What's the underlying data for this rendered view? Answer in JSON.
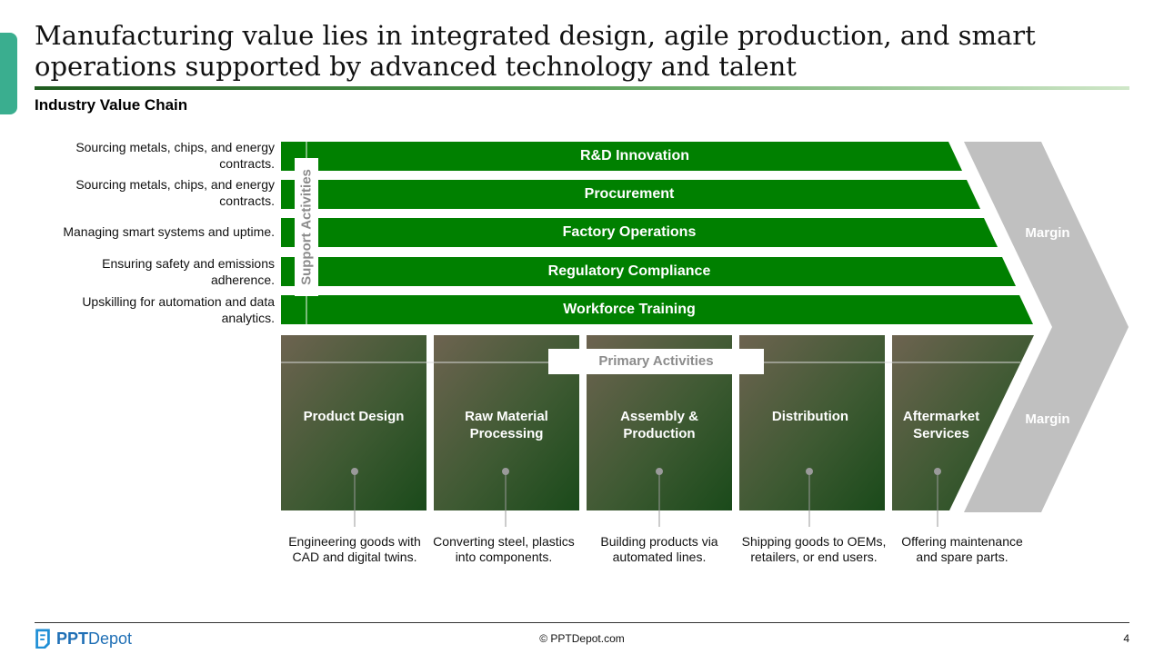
{
  "title": "Manufacturing value lies in integrated design, agile production, and smart operations supported by advanced technology and talent",
  "subtitle": "Industry Value Chain",
  "support_label": "Support Activities",
  "primary_label": "Primary Activities",
  "margin_labels": [
    "Margin",
    "Margin"
  ],
  "support_activities": [
    {
      "label": "R&D Innovation",
      "description": "Sourcing metals, chips, and energy contracts."
    },
    {
      "label": "Procurement",
      "description": "Sourcing metals, chips, and energy contracts."
    },
    {
      "label": "Factory Operations",
      "description": "Managing smart systems and uptime."
    },
    {
      "label": "Regulatory Compliance",
      "description": "Ensuring safety and emissions adherence."
    },
    {
      "label": "Workforce Training",
      "description": "Upskilling for automation and data analytics."
    }
  ],
  "primary_activities": [
    {
      "label": "Product Design",
      "description": "Engineering goods with CAD and digital twins."
    },
    {
      "label": "Raw Material Processing",
      "description": "Converting steel, plastics into components."
    },
    {
      "label": "Assembly & Production",
      "description": "Building products via automated lines."
    },
    {
      "label": "Distribution",
      "description": "Shipping goods to OEMs, retailers, or end users."
    },
    {
      "label": "Aftermarket Services",
      "description": "Offering maintenance and spare parts."
    }
  ],
  "colors": {
    "support_bar": "#008000",
    "margin": "#c0c0c0",
    "accent": "#3aae8f"
  },
  "footer": {
    "logo_bold": "PPT",
    "logo_rest": "Depot",
    "copyright": "© PPTDepot.com",
    "page_number": "4"
  }
}
